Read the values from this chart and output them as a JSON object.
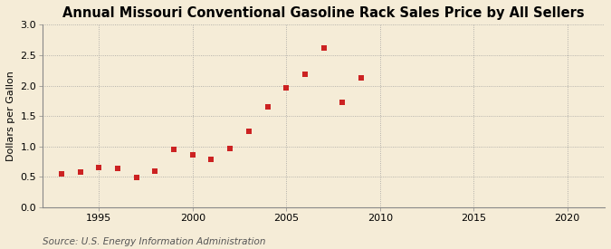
{
  "title": "Annual Missouri Conventional Gasoline Rack Sales Price by All Sellers",
  "ylabel": "Dollars per Gallon",
  "source": "Source: U.S. Energy Information Administration",
  "years": [
    1993,
    1994,
    1995,
    1996,
    1997,
    1998,
    1999,
    2000,
    2001,
    2002,
    2003,
    2004,
    2005,
    2006,
    2007,
    2008,
    2009,
    2010
  ],
  "values": [
    0.55,
    0.58,
    0.65,
    0.64,
    0.49,
    0.59,
    0.95,
    0.87,
    0.79,
    0.97,
    1.25,
    1.65,
    1.97,
    2.18,
    2.62,
    1.73,
    2.12,
    null
  ],
  "marker_color": "#cc2222",
  "marker_size": 4,
  "background_color": "#f5ecd7",
  "grid_color": "#999999",
  "xlim": [
    1992,
    2022
  ],
  "ylim": [
    0.0,
    3.0
  ],
  "xticks": [
    1995,
    2000,
    2005,
    2010,
    2015,
    2020
  ],
  "yticks": [
    0.0,
    0.5,
    1.0,
    1.5,
    2.0,
    2.5,
    3.0
  ],
  "title_fontsize": 10.5,
  "label_fontsize": 8,
  "tick_fontsize": 8,
  "source_fontsize": 7.5
}
